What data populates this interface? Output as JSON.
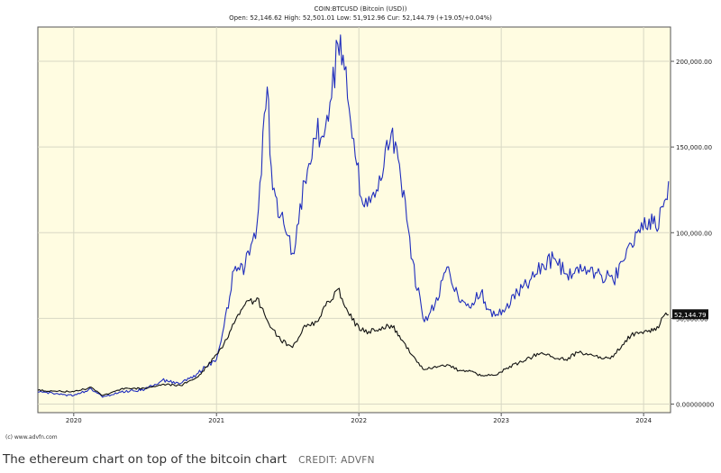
{
  "header": {
    "title": "COIN:BTCUSD (Bitcoin (USD))",
    "stats": "Open: 52,146.62 High: 52,501.01 Low: 51,912.96 Cur: 52,144.79 (+19.05/+0.04%)"
  },
  "footer": {
    "source": "(c) www.advfn.com"
  },
  "caption": {
    "text": "The ethereum chart on top of the bitcoin chart",
    "credit": "CREDIT: ADVFN"
  },
  "colors": {
    "plot_background": "#fffce1",
    "grid": "#d8d8c4",
    "ethereum_line": "#1f2dbd",
    "bitcoin_line": "#111111",
    "current_price_badge": "#111111"
  },
  "chart_data": {
    "type": "line",
    "title": "COIN:BTCUSD (Bitcoin (USD))",
    "xlabel": "",
    "ylabel": "",
    "x_ticks": [
      "2020",
      "2021",
      "2022",
      "2023",
      "2024"
    ],
    "y_ticks": [
      "0.00000000",
      "50,000.00",
      "100,000.00",
      "150,000.00",
      "200,000.00"
    ],
    "ylim": [
      -5000,
      220000
    ],
    "xlim": [
      "2019-10-01",
      "2024-03-10"
    ],
    "grid": true,
    "current_price_label": "52,144.79",
    "series": [
      {
        "key": "eth",
        "color": "#1f2dbd",
        "points": [
          [
            "2019-10-01",
            7000
          ],
          [
            "2019-11-15",
            6000
          ],
          [
            "2020-01-01",
            5000
          ],
          [
            "2020-02-15",
            9000
          ],
          [
            "2020-03-15",
            4000
          ],
          [
            "2020-05-01",
            7000
          ],
          [
            "2020-07-01",
            8500
          ],
          [
            "2020-08-15",
            14000
          ],
          [
            "2020-10-01",
            12000
          ],
          [
            "2020-11-15",
            18000
          ],
          [
            "2021-01-01",
            26000
          ],
          [
            "2021-01-20",
            45000
          ],
          [
            "2021-02-15",
            78000
          ],
          [
            "2021-03-15",
            80000
          ],
          [
            "2021-04-15",
            105000
          ],
          [
            "2021-05-11",
            185000
          ],
          [
            "2021-05-25",
            125000
          ],
          [
            "2021-06-15",
            110000
          ],
          [
            "2021-07-15",
            88000
          ],
          [
            "2021-08-15",
            130000
          ],
          [
            "2021-09-10",
            155000
          ],
          [
            "2021-10-15",
            165000
          ],
          [
            "2021-11-08",
            210000
          ],
          [
            "2021-11-25",
            195000
          ],
          [
            "2021-12-15",
            155000
          ],
          [
            "2022-01-15",
            115000
          ],
          [
            "2022-02-15",
            125000
          ],
          [
            "2022-03-25",
            158000
          ],
          [
            "2022-04-15",
            140000
          ],
          [
            "2022-05-15",
            85000
          ],
          [
            "2022-06-18",
            48000
          ],
          [
            "2022-07-15",
            58000
          ],
          [
            "2022-08-15",
            80000
          ],
          [
            "2022-09-15",
            60000
          ],
          [
            "2022-10-15",
            56000
          ],
          [
            "2022-11-10",
            65000
          ],
          [
            "2022-12-01",
            55000
          ],
          [
            "2023-01-01",
            52000
          ],
          [
            "2023-02-01",
            64000
          ],
          [
            "2023-03-15",
            72000
          ],
          [
            "2023-04-15",
            82000
          ],
          [
            "2023-05-15",
            85000
          ],
          [
            "2023-06-15",
            76000
          ],
          [
            "2023-07-15",
            80000
          ],
          [
            "2023-08-15",
            77000
          ],
          [
            "2023-09-15",
            75000
          ],
          [
            "2023-10-15",
            72000
          ],
          [
            "2023-11-15",
            85000
          ],
          [
            "2023-12-15",
            100000
          ],
          [
            "2024-01-15",
            108000
          ],
          [
            "2024-02-01",
            103000
          ],
          [
            "2024-02-20",
            115000
          ],
          [
            "2024-03-05",
            130000
          ]
        ]
      },
      {
        "key": "btc",
        "color": "#111111",
        "points": [
          [
            "2019-10-01",
            8000
          ],
          [
            "2019-11-15",
            7500
          ],
          [
            "2020-01-01",
            7200
          ],
          [
            "2020-02-15",
            9800
          ],
          [
            "2020-03-15",
            5000
          ],
          [
            "2020-05-01",
            8800
          ],
          [
            "2020-07-01",
            9200
          ],
          [
            "2020-08-15",
            11500
          ],
          [
            "2020-10-01",
            10800
          ],
          [
            "2020-11-15",
            16000
          ],
          [
            "2021-01-01",
            29000
          ],
          [
            "2021-01-20",
            35000
          ],
          [
            "2021-02-15",
            47000
          ],
          [
            "2021-03-15",
            58000
          ],
          [
            "2021-04-15",
            62000
          ],
          [
            "2021-05-15",
            47000
          ],
          [
            "2021-06-15",
            37000
          ],
          [
            "2021-07-15",
            33000
          ],
          [
            "2021-08-15",
            46000
          ],
          [
            "2021-09-15",
            48000
          ],
          [
            "2021-10-15",
            60000
          ],
          [
            "2021-11-08",
            67000
          ],
          [
            "2021-12-15",
            49000
          ],
          [
            "2022-01-15",
            42000
          ],
          [
            "2022-02-15",
            43000
          ],
          [
            "2022-03-25",
            46000
          ],
          [
            "2022-04-15",
            40000
          ],
          [
            "2022-05-15",
            29000
          ],
          [
            "2022-06-18",
            20000
          ],
          [
            "2022-07-15",
            22000
          ],
          [
            "2022-08-15",
            23000
          ],
          [
            "2022-09-15",
            19500
          ],
          [
            "2022-10-15",
            19200
          ],
          [
            "2022-11-10",
            16500
          ],
          [
            "2022-12-15",
            16800
          ],
          [
            "2023-01-15",
            21000
          ],
          [
            "2023-02-15",
            24000
          ],
          [
            "2023-03-15",
            27000
          ],
          [
            "2023-04-15",
            30000
          ],
          [
            "2023-05-15",
            27000
          ],
          [
            "2023-06-15",
            26000
          ],
          [
            "2023-07-15",
            30000
          ],
          [
            "2023-08-15",
            29000
          ],
          [
            "2023-09-15",
            26500
          ],
          [
            "2023-10-15",
            27500
          ],
          [
            "2023-11-15",
            37000
          ],
          [
            "2023-12-15",
            42000
          ],
          [
            "2024-01-15",
            43000
          ],
          [
            "2024-02-01",
            43000
          ],
          [
            "2024-02-20",
            51000
          ],
          [
            "2024-03-05",
            52145
          ]
        ]
      }
    ]
  }
}
